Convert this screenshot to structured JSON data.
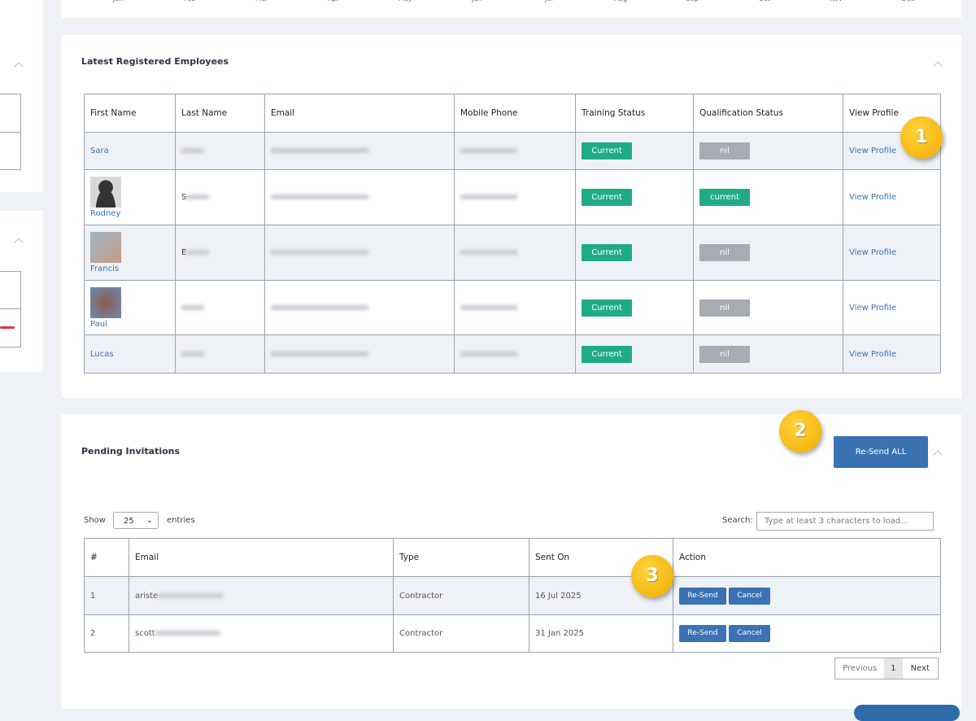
{
  "top_panel": {
    "months": [
      "Jan",
      "Feb",
      "Mar",
      "Apr",
      "May",
      "Jun",
      "Jul",
      "Aug",
      "Sep",
      "Oct",
      "Nov",
      "Dec"
    ]
  },
  "employees": {
    "title": "Latest Registered Employees",
    "columns": [
      "First Name",
      "Last Name",
      "Email",
      "Mobile Phone",
      "Training Status",
      "Qualification Status",
      "View Profile"
    ],
    "rows": [
      {
        "first_name": "Sara",
        "training": "Current",
        "qualification": "nil",
        "action": "View Profile"
      },
      {
        "first_name": "Rodney",
        "last_name": "S",
        "training": "Current",
        "qualification": "current",
        "action": "View Profile"
      },
      {
        "first_name": "Francis",
        "last_name": "E",
        "training": "Current",
        "qualification": "nil",
        "action": "View Profile"
      },
      {
        "first_name": "Paul",
        "training": "Current",
        "qualification": "nil",
        "action": "View Profile"
      },
      {
        "first_name": "Lucas",
        "training": "Current",
        "qualification": "nil",
        "action": "View Profile"
      }
    ]
  },
  "invitations": {
    "title": "Pending Invitations",
    "resend_all": "Re-Send ALL",
    "show": "Show",
    "page_size": "25",
    "entries": "entries",
    "search_label": "Search:",
    "search_placeholder": "Type at least 3 characters to load...",
    "columns": [
      "#",
      "Email",
      "Type",
      "Sent On",
      "Action"
    ],
    "rows": [
      {
        "index": 1,
        "email": "ariste",
        "type": "Contractor",
        "sent_on": "16 Jul 2025",
        "resend": "Re-Send",
        "cancel": "Cancel"
      },
      {
        "index": 2,
        "email": "scott",
        "type": "Contractor",
        "sent_on": "31 Jan 2025",
        "resend": "Re-Send",
        "cancel": "Cancel"
      }
    ],
    "pagination": {
      "previous": "Previous",
      "page": 1,
      "next": "Next"
    }
  },
  "badges": [
    1,
    2,
    3
  ]
}
